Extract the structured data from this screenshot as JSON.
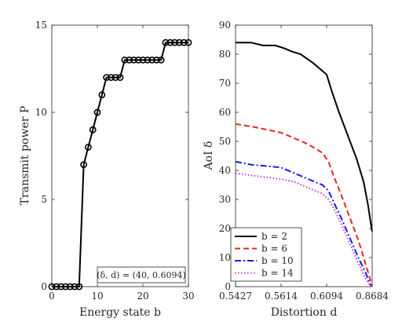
{
  "chart_data": [
    {
      "type": "line",
      "xlabel": "Energy state b",
      "ylabel": "Transmit power P",
      "xlim": [
        0,
        30
      ],
      "ylim": [
        0,
        15
      ],
      "xticks": [
        0,
        10,
        20,
        30
      ],
      "yticks": [
        0,
        5,
        10,
        15
      ],
      "grid": false,
      "annotation": "(δ, d) = (40, 0.6094)",
      "series": [
        {
          "color": "#000000",
          "marker": "circle",
          "x": [
            0,
            1,
            2,
            3,
            4,
            5,
            6,
            7,
            8,
            9,
            10,
            11,
            12,
            13,
            14,
            15,
            16,
            17,
            18,
            19,
            20,
            21,
            22,
            23,
            24,
            25,
            26,
            27,
            28,
            29,
            30
          ],
          "y": [
            0,
            0,
            0,
            0,
            0,
            0,
            0,
            7,
            8,
            9,
            10,
            11,
            12,
            12,
            12,
            12,
            13,
            13,
            13,
            13,
            13,
            13,
            13,
            13,
            13,
            14,
            14,
            14,
            14,
            14,
            14
          ]
        }
      ]
    },
    {
      "type": "line",
      "xlabel": "Distortion d",
      "ylabel": "AoI δ",
      "xlim": [
        0.5427,
        0.8684
      ],
      "ylim": [
        0,
        90
      ],
      "xtick_labels": [
        "0.5427",
        "0.5614",
        "0.6094",
        "0.8684"
      ],
      "yticks": [
        0,
        10,
        20,
        30,
        40,
        50,
        60,
        70,
        80,
        90
      ],
      "grid": false,
      "legend_position": "bottom-left",
      "series": [
        {
          "name": "b = 2",
          "color": "#000000",
          "dash": "solid",
          "x": [
            0.5427,
            0.549,
            0.554,
            0.559,
            0.565,
            0.572,
            0.582,
            0.595,
            0.6094,
            0.64,
            0.68,
            0.73,
            0.78,
            0.82,
            0.845,
            0.86,
            0.8684
          ],
          "y": [
            84,
            84,
            83,
            83,
            82,
            81,
            80,
            77,
            73,
            67,
            60,
            52,
            44,
            36,
            28,
            22,
            19
          ]
        },
        {
          "name": "b = 6",
          "color": "#e8251d",
          "dash": "dashed",
          "x": [
            0.5427,
            0.55,
            0.5614,
            0.576,
            0.59,
            0.605,
            0.62,
            0.65,
            0.69,
            0.74,
            0.79,
            0.83,
            0.855,
            0.8684
          ],
          "y": [
            56,
            55,
            53,
            51,
            49,
            46,
            43,
            38,
            32,
            24,
            16,
            8,
            3,
            0
          ]
        },
        {
          "name": "b = 10",
          "color": "#1a1ae6",
          "dash": "dashdot",
          "x": [
            0.5427,
            0.549,
            0.5614,
            0.576,
            0.59,
            0.605,
            0.62,
            0.65,
            0.69,
            0.74,
            0.79,
            0.83,
            0.855,
            0.8684
          ],
          "y": [
            43,
            42,
            41,
            39,
            37,
            35,
            33,
            29,
            24,
            17,
            10,
            5,
            1,
            0
          ]
        },
        {
          "name": "b = 14",
          "color": "#cc33cc",
          "dash": "dotted",
          "x": [
            0.5427,
            0.552,
            0.5614,
            0.576,
            0.59,
            0.605,
            0.62,
            0.65,
            0.69,
            0.74,
            0.79,
            0.83,
            0.85,
            0.8684
          ],
          "y": [
            39,
            38,
            37,
            36,
            34,
            32,
            30,
            27,
            22,
            15,
            8,
            3,
            1,
            0
          ]
        }
      ]
    }
  ]
}
